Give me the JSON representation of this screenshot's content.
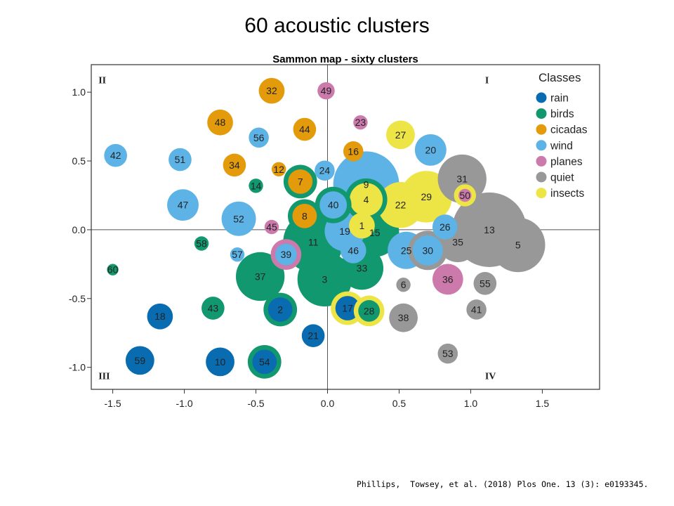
{
  "slide_title": "60 acoustic clusters",
  "citation": "Phillips,  Towsey, et al. (2018) Plos One. 13 (3): e0193345.",
  "colors": {
    "rain": "#0a6cb0",
    "birds": "#12986f",
    "cicadas": "#e39b0b",
    "wind": "#5db3e6",
    "planes": "#cc7aac",
    "quiet": "#989898",
    "insects": "#ede445"
  },
  "chart_data": {
    "type": "scatter",
    "title": "Sammon map - sixty clusters",
    "xlim": [
      -1.65,
      1.9
    ],
    "ylim": [
      -1.16,
      1.2
    ],
    "x_ticks": [
      "-1.5",
      "-1.0",
      "-0.5",
      "0.0",
      "0.5",
      "1.0",
      "1.5"
    ],
    "x_tick_values": [
      -1.5,
      -1.0,
      -0.5,
      0.0,
      0.5,
      1.0,
      1.5
    ],
    "y_ticks": [
      "1.0",
      "0.5",
      "0.0",
      "-0.5",
      "-1.0"
    ],
    "y_tick_values": [
      1.0,
      0.5,
      0.0,
      -0.5,
      -1.0
    ],
    "quadrant_labels": [
      {
        "text": "II",
        "x": -1.6,
        "y": 1.09
      },
      {
        "text": "I",
        "x": 1.1,
        "y": 1.09
      },
      {
        "text": "III",
        "x": -1.6,
        "y": -1.06
      },
      {
        "text": "IV",
        "x": 1.1,
        "y": -1.06
      }
    ],
    "legend_title": "Classes",
    "legend_position": "top-right",
    "legend": [
      "rain",
      "birds",
      "cicadas",
      "wind",
      "planes",
      "quiet",
      "insects"
    ],
    "clusters": [
      {
        "id": 5,
        "x": 1.33,
        "y": -0.11,
        "r": 0.19,
        "cls": "quiet"
      },
      {
        "id": 13,
        "x": 1.13,
        "y": 0.0,
        "r": 0.26,
        "cls": "quiet"
      },
      {
        "id": 31,
        "x": 0.94,
        "y": 0.37,
        "r": 0.17,
        "cls": "quiet"
      },
      {
        "id": 35,
        "x": 0.91,
        "y": -0.09,
        "r": 0.14,
        "cls": "quiet"
      },
      {
        "id": 27,
        "x": 0.51,
        "y": 0.69,
        "r": 0.1,
        "cls": "insects"
      },
      {
        "id": 20,
        "x": 0.72,
        "y": 0.58,
        "r": 0.11,
        "cls": "wind"
      },
      {
        "id": 29,
        "x": 0.69,
        "y": 0.24,
        "r": 0.18,
        "cls": "insects"
      },
      {
        "id": 22,
        "x": 0.51,
        "y": 0.18,
        "r": 0.16,
        "cls": "insects"
      },
      {
        "id": 15,
        "x": 0.33,
        "y": -0.02,
        "r": 0.17,
        "cls": "birds"
      },
      {
        "id": 9,
        "x": 0.27,
        "y": 0.33,
        "r": 0.23,
        "cls": "wind"
      },
      {
        "id": 11,
        "x": -0.1,
        "y": -0.09,
        "r": 0.21,
        "cls": "birds"
      },
      {
        "id": 3,
        "x": -0.02,
        "y": -0.36,
        "r": 0.19,
        "cls": "birds"
      },
      {
        "id": 33,
        "x": 0.24,
        "y": -0.28,
        "r": 0.15,
        "cls": "birds"
      },
      {
        "id": 37,
        "x": -0.47,
        "y": -0.34,
        "r": 0.17,
        "cls": "birds"
      },
      {
        "id": 19,
        "x": 0.12,
        "y": -0.01,
        "r": 0.14,
        "cls": "wind"
      },
      {
        "id": 4,
        "x": 0.27,
        "y": 0.22,
        "r": 0.13,
        "cls": "insects",
        "ring": "birds"
      },
      {
        "id": 1,
        "x": 0.24,
        "y": 0.03,
        "r": 0.09,
        "cls": "insects"
      },
      {
        "id": 25,
        "x": 0.55,
        "y": -0.15,
        "r": 0.13,
        "cls": "wind"
      },
      {
        "id": 30,
        "x": 0.7,
        "y": -0.15,
        "r": 0.12,
        "cls": "wind",
        "ring": "quiet"
      },
      {
        "id": 40,
        "x": 0.04,
        "y": 0.18,
        "r": 0.11,
        "cls": "wind",
        "ring": "birds"
      },
      {
        "id": 8,
        "x": -0.16,
        "y": 0.1,
        "r": 0.1,
        "cls": "cicadas",
        "ring": "birds"
      },
      {
        "id": 7,
        "x": -0.19,
        "y": 0.35,
        "r": 0.1,
        "cls": "cicadas",
        "ring": "birds"
      },
      {
        "id": 46,
        "x": 0.18,
        "y": -0.15,
        "r": 0.09,
        "cls": "wind"
      },
      {
        "id": 24,
        "x": -0.02,
        "y": 0.43,
        "r": 0.07,
        "cls": "wind"
      },
      {
        "id": 12,
        "x": -0.34,
        "y": 0.44,
        "r": 0.05,
        "cls": "cicadas"
      },
      {
        "id": 14,
        "x": -0.5,
        "y": 0.32,
        "r": 0.05,
        "cls": "birds"
      },
      {
        "id": 32,
        "x": -0.39,
        "y": 1.01,
        "r": 0.09,
        "cls": "cicadas"
      },
      {
        "id": 49,
        "x": -0.01,
        "y": 1.01,
        "r": 0.06,
        "cls": "planes"
      },
      {
        "id": 23,
        "x": 0.23,
        "y": 0.78,
        "r": 0.05,
        "cls": "planes"
      },
      {
        "id": 48,
        "x": -0.75,
        "y": 0.78,
        "r": 0.09,
        "cls": "cicadas"
      },
      {
        "id": 44,
        "x": -0.16,
        "y": 0.73,
        "r": 0.08,
        "cls": "cicadas"
      },
      {
        "id": 56,
        "x": -0.48,
        "y": 0.67,
        "r": 0.07,
        "cls": "wind"
      },
      {
        "id": 16,
        "x": 0.18,
        "y": 0.57,
        "r": 0.07,
        "cls": "cicadas"
      },
      {
        "id": 34,
        "x": -0.65,
        "y": 0.47,
        "r": 0.08,
        "cls": "cicadas"
      },
      {
        "id": 42,
        "x": -1.48,
        "y": 0.54,
        "r": 0.08,
        "cls": "wind"
      },
      {
        "id": 51,
        "x": -1.03,
        "y": 0.51,
        "r": 0.08,
        "cls": "wind"
      },
      {
        "id": 47,
        "x": -1.01,
        "y": 0.18,
        "r": 0.11,
        "cls": "wind"
      },
      {
        "id": 52,
        "x": -0.62,
        "y": 0.08,
        "r": 0.12,
        "cls": "wind"
      },
      {
        "id": 45,
        "x": -0.39,
        "y": 0.02,
        "r": 0.05,
        "cls": "planes"
      },
      {
        "id": 58,
        "x": -0.88,
        "y": -0.1,
        "r": 0.05,
        "cls": "birds"
      },
      {
        "id": 57,
        "x": -0.63,
        "y": -0.18,
        "r": 0.05,
        "cls": "wind"
      },
      {
        "id": 39,
        "x": -0.29,
        "y": -0.18,
        "r": 0.09,
        "cls": "wind",
        "ring": "planes"
      },
      {
        "id": 60,
        "x": -1.5,
        "y": -0.29,
        "r": 0.04,
        "cls": "birds"
      },
      {
        "id": 26,
        "x": 0.82,
        "y": 0.02,
        "r": 0.07,
        "cls": "wind",
        "ring": "wind"
      },
      {
        "id": 50,
        "x": 0.96,
        "y": 0.25,
        "r": 0.06,
        "cls": "planes",
        "ring": "insects"
      },
      {
        "id": 36,
        "x": 0.84,
        "y": -0.36,
        "r": 0.09,
        "cls": "planes",
        "ring": "planes"
      },
      {
        "id": 6,
        "x": 0.53,
        "y": -0.4,
        "r": 0.05,
        "cls": "quiet"
      },
      {
        "id": 55,
        "x": 1.1,
        "y": -0.39,
        "r": 0.08,
        "cls": "quiet"
      },
      {
        "id": 41,
        "x": 1.04,
        "y": -0.58,
        "r": 0.07,
        "cls": "quiet"
      },
      {
        "id": 38,
        "x": 0.53,
        "y": -0.64,
        "r": 0.1,
        "cls": "quiet"
      },
      {
        "id": 53,
        "x": 0.84,
        "y": -0.9,
        "r": 0.07,
        "cls": "quiet"
      },
      {
        "id": 17,
        "x": 0.14,
        "y": -0.57,
        "r": 0.1,
        "cls": "rain",
        "ring": "insects"
      },
      {
        "id": 28,
        "x": 0.29,
        "y": -0.59,
        "r": 0.09,
        "cls": "birds",
        "ring": "insects"
      },
      {
        "id": 2,
        "x": -0.33,
        "y": -0.58,
        "r": 0.1,
        "cls": "rain",
        "ring": "birds"
      },
      {
        "id": 43,
        "x": -0.8,
        "y": -0.57,
        "r": 0.08,
        "cls": "birds"
      },
      {
        "id": 18,
        "x": -1.17,
        "y": -0.63,
        "r": 0.09,
        "cls": "rain"
      },
      {
        "id": 21,
        "x": -0.1,
        "y": -0.77,
        "r": 0.08,
        "cls": "rain"
      },
      {
        "id": 59,
        "x": -1.31,
        "y": -0.95,
        "r": 0.1,
        "cls": "rain"
      },
      {
        "id": 10,
        "x": -0.75,
        "y": -0.96,
        "r": 0.1,
        "cls": "rain"
      },
      {
        "id": 54,
        "x": -0.44,
        "y": -0.96,
        "r": 0.1,
        "cls": "rain",
        "ring": "birds"
      }
    ]
  }
}
